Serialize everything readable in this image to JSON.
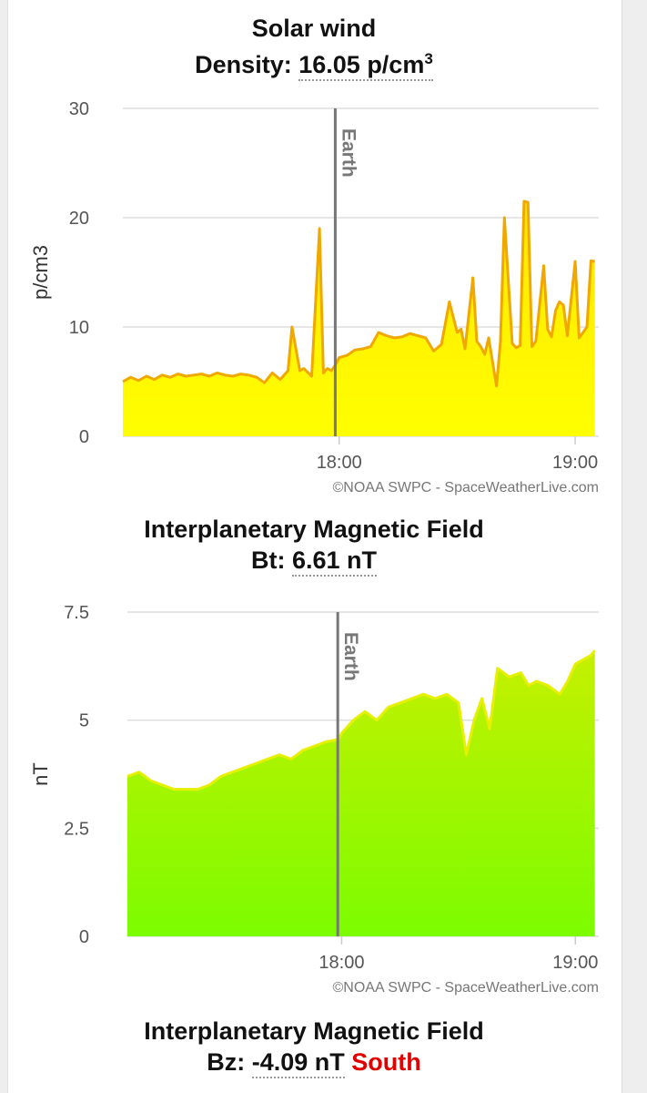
{
  "panels": {
    "density": {
      "title": "Solar wind",
      "metric_label": "Density:",
      "metric_value": "16.05",
      "metric_unit": "p/cm",
      "metric_sup": "3"
    },
    "bt": {
      "title": "Interplanetary Magnetic Field",
      "metric_label": "Bt:",
      "metric_value": "6.61 nT"
    },
    "bz": {
      "title": "Interplanetary Magnetic Field",
      "metric_label": "Bz:",
      "metric_value": "-4.09 nT",
      "direction": "South"
    }
  },
  "colors": {
    "density_line": "#f0a800",
    "density_fill_top": "#ffe500",
    "density_fill_bottom": "#ffff00",
    "bt_line": "#e6f000",
    "bt_fill_top": "#c5f000",
    "bt_fill_bottom": "#7cfc00",
    "earth_line": "#777777",
    "grid": "#dddddd",
    "south": "#e00000"
  },
  "chart_data": [
    {
      "type": "area",
      "ylabel": "p/cm3",
      "xlabel": "",
      "ylim": [
        0,
        30
      ],
      "yticks": [
        0,
        10,
        20,
        30
      ],
      "xlim": [
        "17:05",
        "19:06"
      ],
      "xticks": [
        "18:00",
        "19:00"
      ],
      "grid": true,
      "marker": {
        "label": "Earth",
        "x": "17:59"
      },
      "credit": "©NOAA SWPC - SpaceWeatherLive.com",
      "series": [
        {
          "x": [
            "17:05",
            "17:07",
            "17:09",
            "17:11",
            "17:13",
            "17:15",
            "17:17",
            "17:19",
            "17:21",
            "17:23",
            "17:25",
            "17:27",
            "17:29",
            "17:31",
            "17:33",
            "17:35",
            "17:37",
            "17:39",
            "17:41",
            "17:43",
            "17:45",
            "17:47",
            "17:48",
            "17:50",
            "17:51",
            "17:53",
            "17:55",
            "17:56",
            "17:57",
            "17:58",
            "17:59",
            "18:00",
            "18:02",
            "18:04",
            "18:06",
            "18:08",
            "18:10",
            "18:12",
            "18:14",
            "18:16",
            "18:18",
            "18:20",
            "18:22",
            "18:24",
            "18:26",
            "18:28",
            "18:30",
            "18:31",
            "18:32",
            "18:34",
            "18:35",
            "18:36",
            "18:37",
            "18:38",
            "18:40",
            "18:41",
            "18:42",
            "18:44",
            "18:45",
            "18:46",
            "18:47",
            "18:48",
            "18:49",
            "18:50",
            "18:52",
            "18:53",
            "18:54",
            "18:55",
            "18:56",
            "18:57",
            "18:58",
            "19:00",
            "19:01",
            "19:02",
            "19:03",
            "19:04",
            "19:05"
          ],
          "values": [
            5.0,
            5.4,
            5.1,
            5.5,
            5.2,
            5.6,
            5.4,
            5.7,
            5.5,
            5.6,
            5.7,
            5.5,
            5.8,
            5.6,
            5.5,
            5.7,
            5.6,
            5.4,
            4.9,
            5.8,
            5.2,
            6.0,
            10.0,
            6.0,
            6.2,
            5.5,
            19.0,
            5.8,
            6.2,
            6.0,
            6.5,
            7.2,
            7.4,
            7.9,
            8.0,
            8.2,
            9.5,
            9.2,
            9.0,
            9.1,
            9.4,
            9.2,
            9.0,
            7.8,
            8.4,
            12.3,
            9.5,
            9.8,
            8.0,
            14.5,
            8.7,
            8.2,
            7.5,
            9.0,
            4.6,
            8.6,
            20.0,
            8.5,
            8.1,
            8.3,
            21.5,
            21.4,
            8.2,
            8.7,
            15.6,
            9.8,
            9.1,
            11.5,
            12.3,
            12.0,
            9.2,
            16.0,
            9.0,
            9.5,
            10.0,
            16.05,
            16.0
          ]
        }
      ]
    },
    {
      "type": "area",
      "ylabel": "nT",
      "xlabel": "",
      "ylim": [
        0,
        7.5
      ],
      "yticks": [
        0,
        2.5,
        5,
        7.5
      ],
      "xlim": [
        "17:05",
        "19:06"
      ],
      "xticks": [
        "18:00",
        "19:00"
      ],
      "grid": true,
      "marker": {
        "label": "Earth",
        "x": "17:59"
      },
      "credit": "©NOAA SWPC - SpaceWeatherLive.com",
      "series": [
        {
          "x": [
            "17:05",
            "17:08",
            "17:11",
            "17:14",
            "17:17",
            "17:20",
            "17:23",
            "17:26",
            "17:29",
            "17:32",
            "17:35",
            "17:38",
            "17:41",
            "17:44",
            "17:47",
            "17:50",
            "17:53",
            "17:56",
            "17:59",
            "18:00",
            "18:03",
            "18:06",
            "18:09",
            "18:12",
            "18:15",
            "18:18",
            "18:21",
            "18:24",
            "18:27",
            "18:30",
            "18:32",
            "18:34",
            "18:36",
            "18:38",
            "18:40",
            "18:43",
            "18:46",
            "18:48",
            "18:50",
            "18:53",
            "18:56",
            "18:58",
            "19:00",
            "19:02",
            "19:04",
            "19:05"
          ],
          "values": [
            3.7,
            3.8,
            3.6,
            3.5,
            3.4,
            3.4,
            3.4,
            3.5,
            3.7,
            3.8,
            3.9,
            4.0,
            4.1,
            4.2,
            4.1,
            4.3,
            4.4,
            4.5,
            4.55,
            4.7,
            5.0,
            5.2,
            5.0,
            5.3,
            5.4,
            5.5,
            5.6,
            5.5,
            5.6,
            5.4,
            4.2,
            5.0,
            5.5,
            4.8,
            6.2,
            6.0,
            6.1,
            5.8,
            5.9,
            5.8,
            5.6,
            5.9,
            6.3,
            6.4,
            6.5,
            6.61
          ]
        }
      ]
    }
  ]
}
